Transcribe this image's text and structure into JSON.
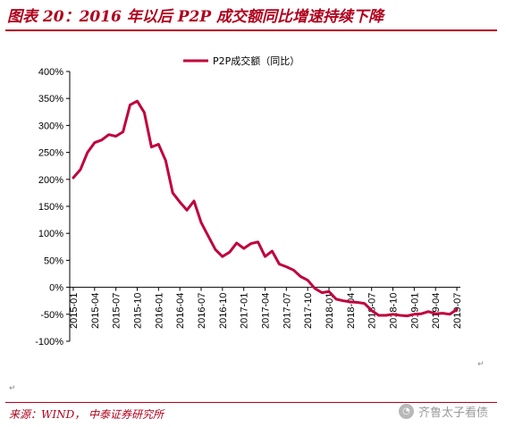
{
  "title": "图表 20：2016 年以后 P2P 成交额同比增速持续下降",
  "source": "来源：WIND， 中泰证券研究所",
  "watermark": "齐鲁太子看债",
  "colors": {
    "accent": "#b0001c",
    "series": "#c0003c"
  },
  "chart_data": {
    "type": "line",
    "xlabel": "",
    "ylabel": "",
    "ylim": [
      -100,
      400
    ],
    "yticks": [
      "400%",
      "350%",
      "300%",
      "250%",
      "200%",
      "150%",
      "100%",
      "50%",
      "0%",
      "-50%",
      "-100%"
    ],
    "grid": false,
    "legend": "top",
    "xtick_labels": [
      "2015-01",
      "2015-04",
      "2015-07",
      "2015-10",
      "2016-01",
      "2016-04",
      "2016-07",
      "2016-10",
      "2017-01",
      "2017-04",
      "2017-07",
      "2017-10",
      "2018-01",
      "2018-04",
      "2018-07",
      "2018-10",
      "2019-01",
      "2019-04",
      "2019-07"
    ],
    "x": [
      "2015-01",
      "2015-02",
      "2015-03",
      "2015-04",
      "2015-05",
      "2015-06",
      "2015-07",
      "2015-08",
      "2015-09",
      "2015-10",
      "2015-11",
      "2015-12",
      "2016-01",
      "2016-02",
      "2016-03",
      "2016-04",
      "2016-05",
      "2016-06",
      "2016-07",
      "2016-08",
      "2016-09",
      "2016-10",
      "2016-11",
      "2016-12",
      "2017-01",
      "2017-02",
      "2017-03",
      "2017-04",
      "2017-05",
      "2017-06",
      "2017-07",
      "2017-08",
      "2017-09",
      "2017-10",
      "2017-11",
      "2017-12",
      "2018-01",
      "2018-02",
      "2018-03",
      "2018-04",
      "2018-05",
      "2018-06",
      "2018-07",
      "2018-08",
      "2018-09",
      "2018-10",
      "2018-11",
      "2018-12",
      "2019-01",
      "2019-02",
      "2019-03",
      "2019-04",
      "2019-05",
      "2019-06",
      "2019-07"
    ],
    "series": [
      {
        "name": "P2P成交额（同比）",
        "values": [
          203,
          218,
          250,
          268,
          273,
          283,
          280,
          288,
          338,
          345,
          324,
          260,
          265,
          235,
          175,
          158,
          143,
          160,
          120,
          95,
          70,
          57,
          65,
          82,
          72,
          81,
          84,
          57,
          67,
          43,
          38,
          32,
          20,
          13,
          -2,
          -10,
          -8,
          -22,
          -25,
          -27,
          -28,
          -30,
          -43,
          -52,
          -52,
          -50,
          -52,
          -53,
          -50,
          -49,
          -45,
          -49,
          -48,
          -50,
          -41
        ]
      }
    ]
  }
}
